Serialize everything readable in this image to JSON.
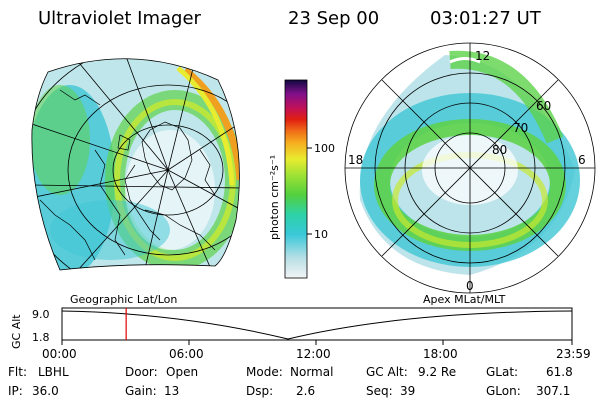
{
  "header": {
    "title": "Ultraviolet Imager",
    "date": "23 Sep 00",
    "time": "03:01:27 UT"
  },
  "colorbar": {
    "label": "photon cm⁻²s⁻¹",
    "ticks": [
      "100",
      "10"
    ],
    "scale": "log"
  },
  "left_panel": {
    "caption": "Geographic Lat/Lon"
  },
  "right_panel": {
    "caption": "Apex MLat/MLT",
    "lat_labels": [
      "60",
      "70",
      "80"
    ],
    "mlt_labels": [
      "12",
      "18",
      "6",
      "0"
    ]
  },
  "timeline": {
    "ylabel": "GC Alt",
    "yticks": [
      "9.0",
      "1.8"
    ],
    "xticks": [
      "00:00",
      "06:00",
      "12:00",
      "18:00",
      "23:59"
    ],
    "current_marker_time": "03:01"
  },
  "status": {
    "row1": [
      {
        "label": "Flt:",
        "value": "LBHL"
      },
      {
        "label": "Door:",
        "value": "Open"
      },
      {
        "label": "Mode:",
        "value": "Normal"
      },
      {
        "label": "GC Alt:",
        "value": "9.2 Re"
      },
      {
        "label": "GLat:",
        "value": "61.8"
      }
    ],
    "row2": [
      {
        "label": "IP:",
        "value": "36.0"
      },
      {
        "label": "Gain:",
        "value": "13"
      },
      {
        "label": "Dsp:",
        "value": "2.6"
      },
      {
        "label": "Seq:",
        "value": "39"
      },
      {
        "label": "GLon:",
        "value": "307.1"
      }
    ]
  },
  "colors": {
    "marker": "#e00000",
    "low": "#dfe6e8",
    "cyan": "#30d0c8",
    "green": "#5fd33c",
    "yellow_green": "#c8e830",
    "orange": "#f0a020"
  }
}
